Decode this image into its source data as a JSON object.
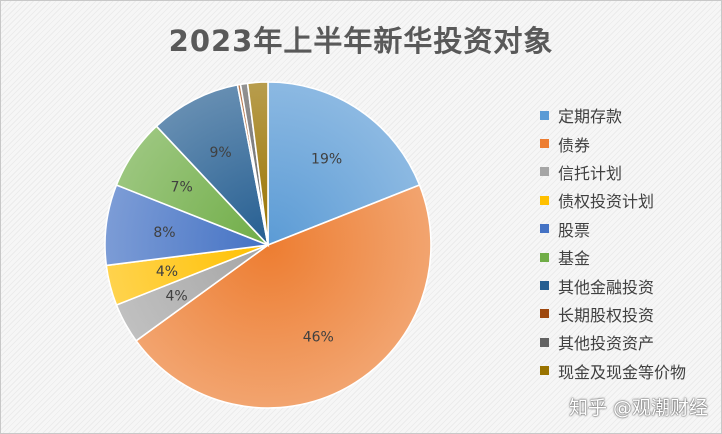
{
  "chart_data": {
    "type": "pie",
    "title": "2023年上半年新华投资对象",
    "legend_position": "right",
    "slices": [
      {
        "label": "定期存款",
        "value": 19,
        "display": "19%",
        "color": "#5b9bd5"
      },
      {
        "label": "债券",
        "value": 46,
        "display": "46%",
        "color": "#ed7d31"
      },
      {
        "label": "信托计划",
        "value": 4,
        "display": "4%",
        "color": "#a5a5a5"
      },
      {
        "label": "债权投资计划",
        "value": 4,
        "display": "4%",
        "color": "#ffc000"
      },
      {
        "label": "股票",
        "value": 8,
        "display": "8%",
        "color": "#4472c4"
      },
      {
        "label": "基金",
        "value": 7,
        "display": "7%",
        "color": "#70ad47"
      },
      {
        "label": "其他金融投资",
        "value": 9,
        "display": "9%",
        "color": "#255e91"
      },
      {
        "label": "长期股权投资",
        "value": 0.3,
        "display": "",
        "color": "#9e480e"
      },
      {
        "label": "其他投资资产",
        "value": 0.7,
        "display": "",
        "color": "#636363"
      },
      {
        "label": "现金及现金等价物",
        "value": 2,
        "display": "",
        "color": "#997300"
      }
    ]
  },
  "watermark": "知乎 @观潮财经"
}
